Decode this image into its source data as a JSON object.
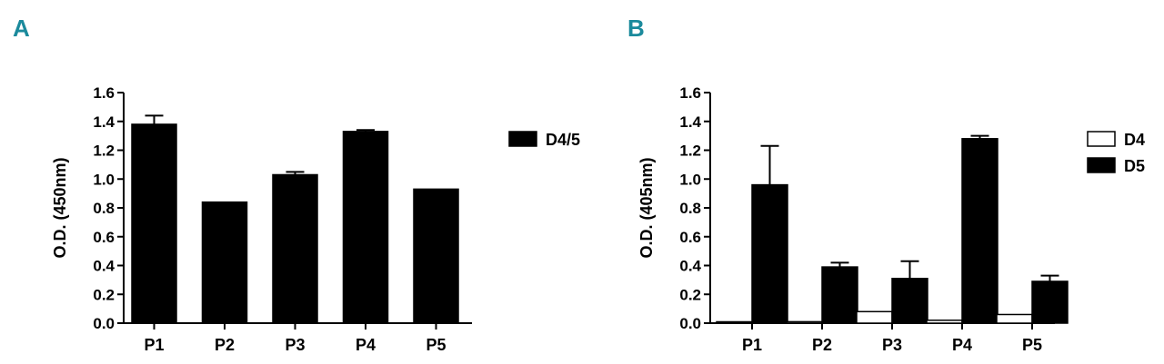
{
  "chart_data": [
    {
      "panel": "A",
      "type": "bar",
      "ylabel": "O.D. (450nm)",
      "ylim": [
        0,
        1.6
      ],
      "yticks": [
        "0.0",
        "0.2",
        "0.4",
        "0.6",
        "0.8",
        "1.0",
        "1.2",
        "1.4",
        "1.6"
      ],
      "categories": [
        "P1",
        "P2",
        "P3",
        "P4",
        "P5"
      ],
      "series": [
        {
          "name": "D4/5",
          "fill": "#000000",
          "values": [
            1.38,
            0.84,
            1.03,
            1.33,
            0.93
          ],
          "errors": [
            0.06,
            0.0,
            0.02,
            0.01,
            0.0
          ]
        }
      ],
      "legend": "right"
    },
    {
      "panel": "B",
      "type": "bar",
      "ylabel": "O.D. (405nm)",
      "ylim": [
        0,
        1.6
      ],
      "yticks": [
        "0.0",
        "0.2",
        "0.4",
        "0.6",
        "0.8",
        "1.0",
        "1.2",
        "1.4",
        "1.6"
      ],
      "categories": [
        "P1",
        "P2",
        "P3",
        "P4",
        "P5"
      ],
      "series": [
        {
          "name": "D4",
          "fill": "#ffffff",
          "values": [
            0.0,
            0.01,
            0.08,
            0.02,
            0.06
          ],
          "errors": [
            0,
            0,
            0,
            0,
            0
          ]
        },
        {
          "name": "D5",
          "fill": "#000000",
          "values": [
            0.96,
            0.39,
            0.31,
            1.28,
            0.29
          ],
          "errors": [
            0.27,
            0.03,
            0.12,
            0.02,
            0.04
          ]
        }
      ],
      "legend": "right"
    }
  ]
}
